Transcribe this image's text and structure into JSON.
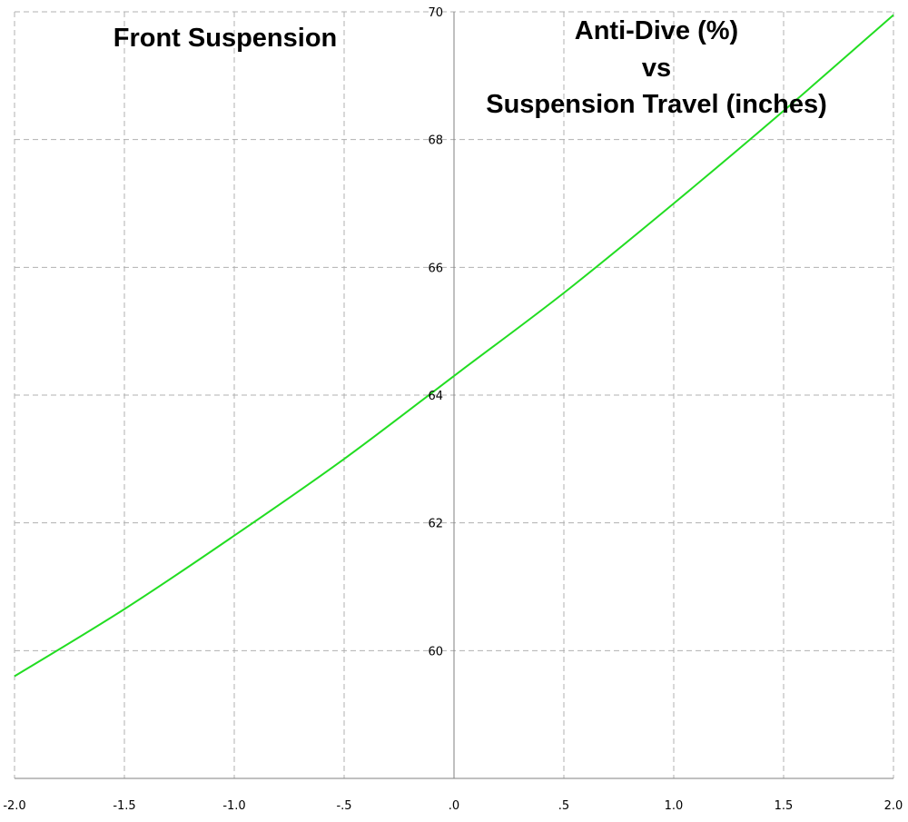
{
  "chart_data": {
    "type": "line",
    "panel_label": "Front Suspension",
    "title_lines": [
      "Anti-Dive (%)",
      "vs",
      "Suspension Travel (inches)"
    ],
    "xlabel": "",
    "ylabel": "",
    "xlim": [
      -2.0,
      2.0
    ],
    "ylim": [
      58.0,
      70.0
    ],
    "x_ticks": [
      -2.0,
      -1.5,
      -1.0,
      -0.5,
      0.0,
      0.5,
      1.0,
      1.5,
      2.0
    ],
    "x_tick_labels": [
      "-2.0",
      "-1.5",
      "-1.0",
      "-.5",
      ".0",
      ".5",
      "1.0",
      "1.5",
      "2.0"
    ],
    "y_ticks": [
      60,
      62,
      64,
      66,
      68,
      70
    ],
    "y_tick_labels": [
      "60",
      "62",
      "64",
      "66",
      "68",
      "70"
    ],
    "grid": true,
    "colors": {
      "line": "#22dd22",
      "grid": "#b0b0b0",
      "axis": "#808080"
    },
    "series": [
      {
        "x": [
          -2.0,
          -1.5,
          -1.0,
          -0.5,
          0.0,
          0.5,
          1.0,
          1.5,
          2.0
        ],
        "y": [
          59.6,
          60.65,
          61.8,
          63.0,
          64.3,
          65.6,
          67.0,
          68.45,
          69.95
        ]
      }
    ]
  }
}
